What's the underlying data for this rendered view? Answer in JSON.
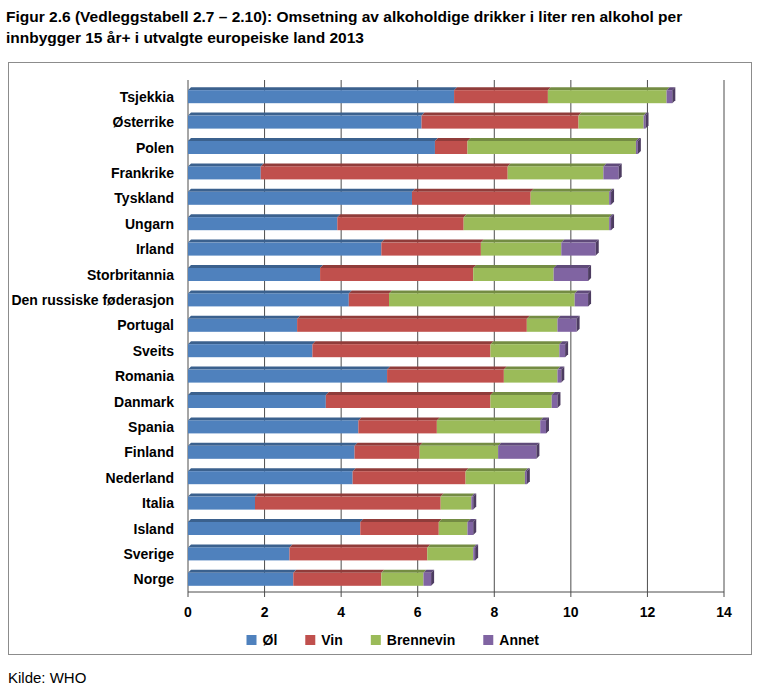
{
  "chart_data": {
    "type": "bar",
    "orientation": "horizontal",
    "stacked": true,
    "grid": true,
    "legend": "bottom",
    "title": "Figur 2.6 (Vedleggstabell 2.7 – 2.10): Omsetning av alkoholdige drikker i liter ren alkohol per innbygger 15 år+ i utvalgte europeiske land 2013",
    "source": "Kilde: WHO",
    "categories": [
      "Tsjekkia",
      "Østerrike",
      "Polen",
      "Frankrike",
      "Tyskland",
      "Ungarn",
      "Irland",
      "Storbritannia",
      "Den russiske føderasjon",
      "Portugal",
      "Sveits",
      "Romania",
      "Danmark",
      "Spania",
      "Finland",
      "Nederland",
      "Italia",
      "Island",
      "Sverige",
      "Norge"
    ],
    "series": [
      {
        "name": "Øl",
        "color": "#4f81bd",
        "values": [
          6.95,
          6.1,
          6.45,
          1.9,
          5.85,
          3.9,
          5.05,
          3.45,
          4.2,
          2.85,
          3.25,
          5.2,
          3.6,
          4.45,
          4.35,
          4.3,
          1.75,
          4.5,
          2.65,
          2.75
        ]
      },
      {
        "name": "Vin",
        "color": "#c0504d",
        "values": [
          2.45,
          4.1,
          0.85,
          6.45,
          3.1,
          3.3,
          2.6,
          4.0,
          1.05,
          6.0,
          4.65,
          3.05,
          4.3,
          2.05,
          1.7,
          2.95,
          4.85,
          2.05,
          3.6,
          2.3
        ]
      },
      {
        "name": "Brennevin",
        "color": "#9bbb59",
        "values": [
          3.1,
          1.7,
          4.4,
          2.5,
          2.05,
          3.8,
          2.1,
          2.1,
          4.85,
          0.8,
          1.8,
          1.4,
          1.6,
          2.7,
          2.05,
          1.55,
          0.8,
          0.75,
          1.2,
          1.1
        ]
      },
      {
        "name": "Annet",
        "color": "#8064a2",
        "values": [
          0.15,
          0.05,
          0.05,
          0.4,
          0.05,
          0.05,
          0.9,
          0.9,
          0.35,
          0.5,
          0.15,
          0.1,
          0.15,
          0.15,
          1.0,
          0.05,
          0.05,
          0.15,
          0.05,
          0.2
        ]
      }
    ],
    "xlim": [
      0,
      14
    ],
    "xticks": [
      0,
      2,
      4,
      6,
      8,
      10,
      12,
      14
    ]
  }
}
